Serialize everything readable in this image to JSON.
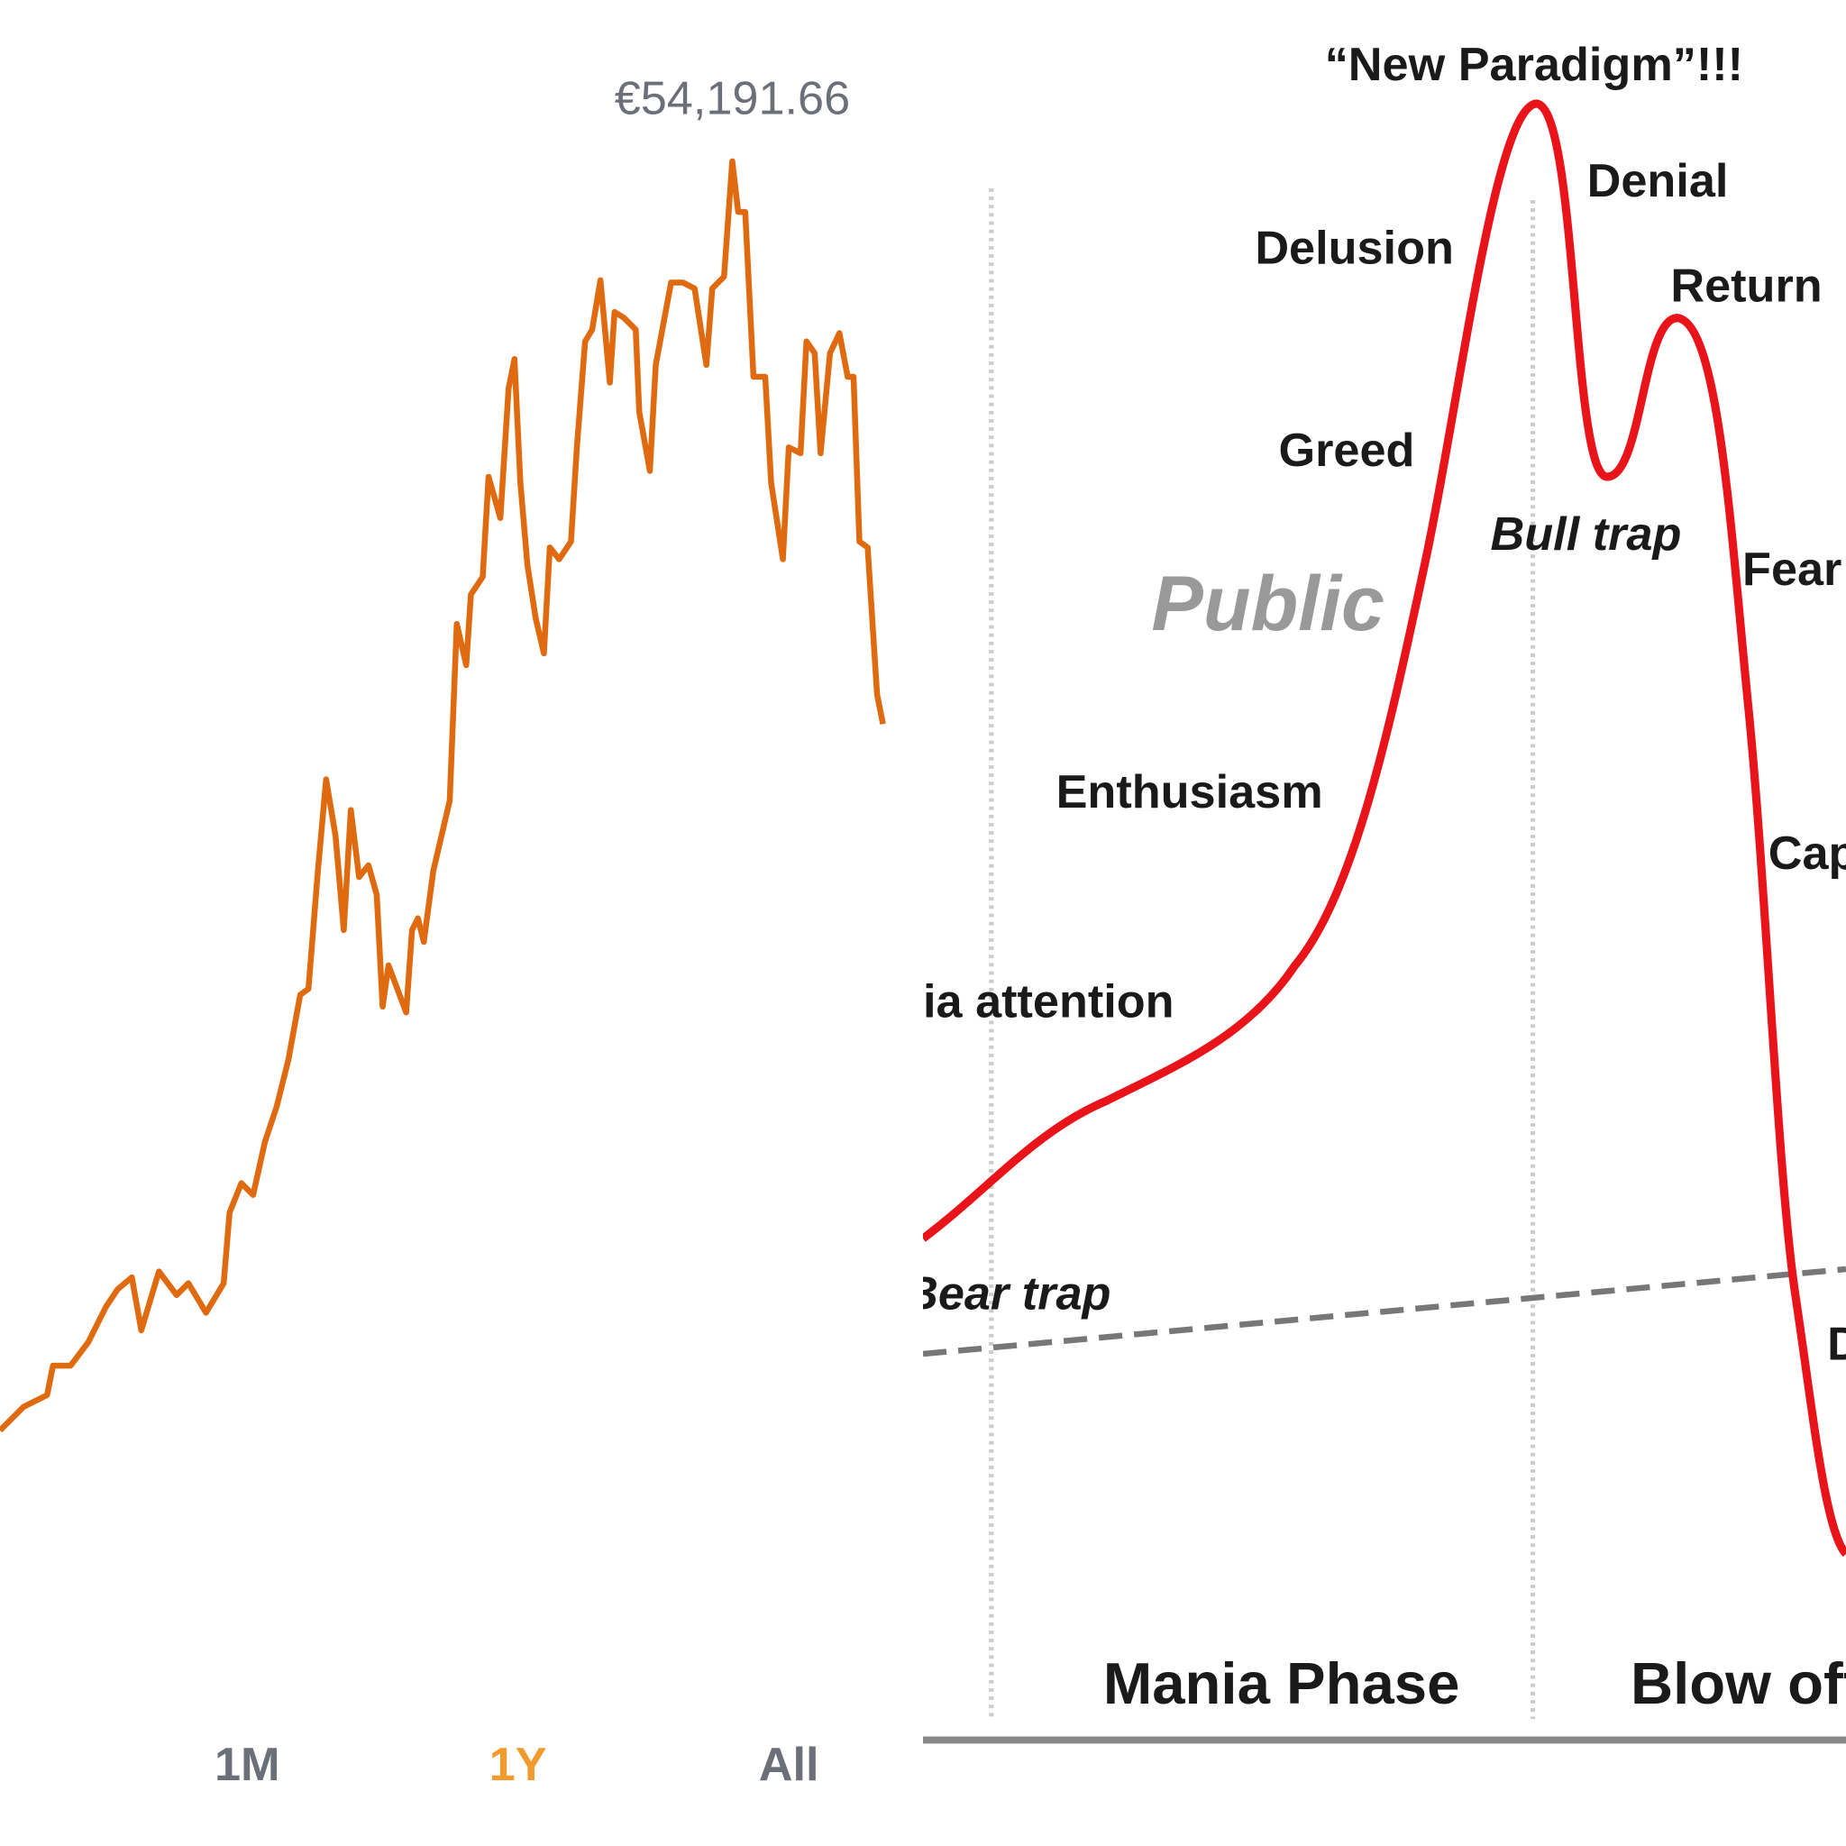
{
  "price_chart": {
    "peak_label": "€54,191.66",
    "timeframes": [
      "1M",
      "1Y",
      "All"
    ]
  },
  "bubble_diagram": {
    "labels": [
      "“New Paradigm”!!!",
      "Denial",
      "Delusion",
      "Return",
      "Greed",
      "Bull trap",
      "Fear",
      "Public",
      "Enthusiasm",
      "Cap",
      "ia attention",
      "Bear trap",
      "D"
    ],
    "phases": [
      "Mania Phase",
      "Blow off"
    ]
  }
}
